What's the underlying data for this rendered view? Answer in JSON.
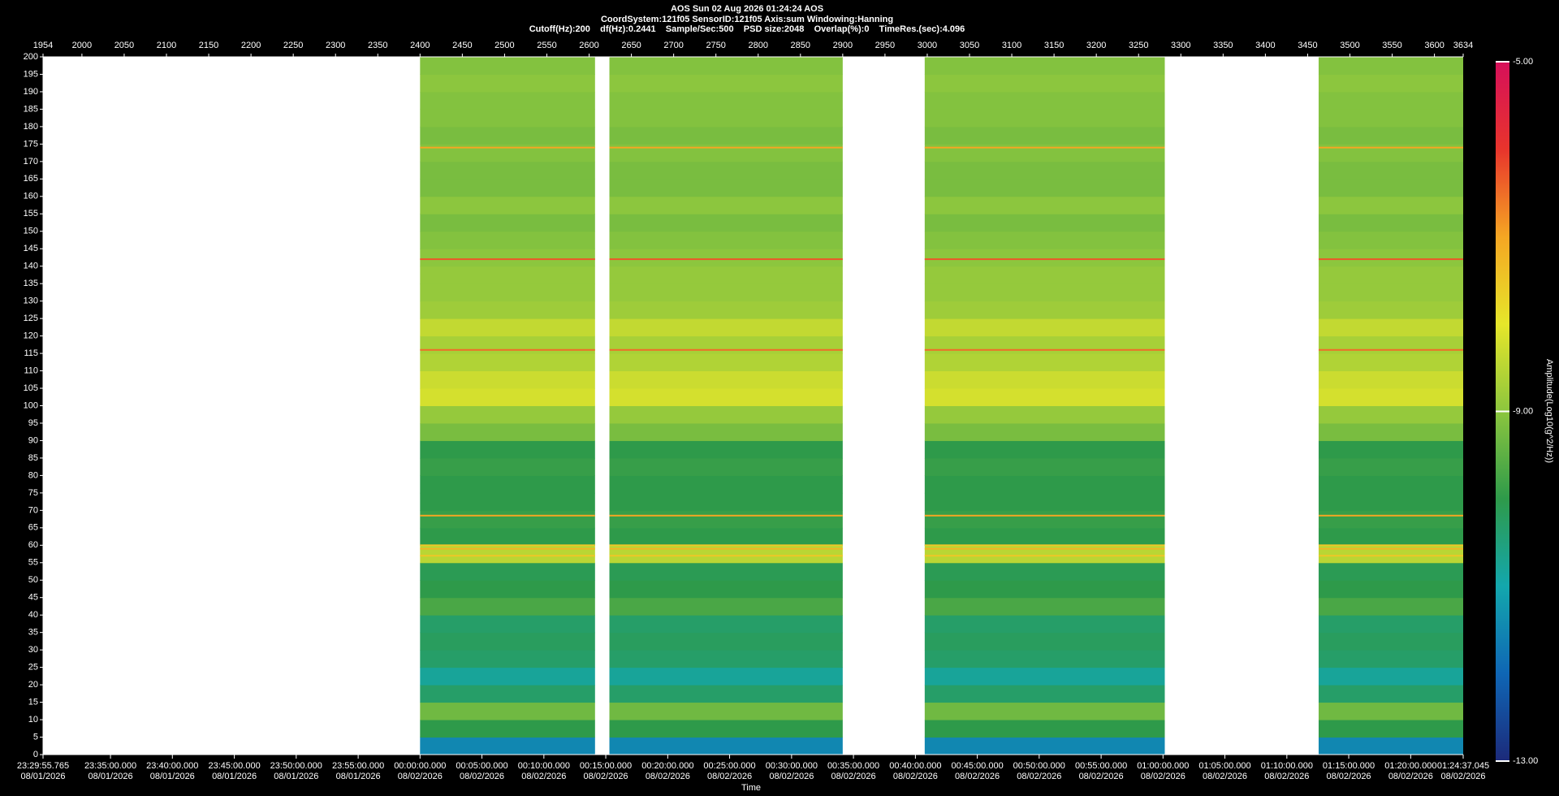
{
  "chart_data": {
    "type": "spectrogram",
    "title": "AOS  Sun 02 Aug 2026 01:24:24  AOS",
    "subtitle": "CoordSystem:121f05   SensorID:121f05   Axis:sum   Windowing:Hanning",
    "info": "Cutoff(Hz):200    df(Hz):0.2441    Sample/Sec:500    PSD size:2048    Overlap(%):0    TimeRes.(sec):4.096",
    "x2_label": "Time",
    "xlim": [
      1954,
      3634
    ],
    "xticks": [
      1954,
      2000,
      2050,
      2100,
      2150,
      2200,
      2250,
      2300,
      2350,
      2400,
      2450,
      2500,
      2550,
      2600,
      2650,
      2700,
      2750,
      2800,
      2850,
      2900,
      2950,
      3000,
      3050,
      3100,
      3150,
      3200,
      3250,
      3300,
      3350,
      3400,
      3450,
      3500,
      3550,
      3600,
      3634
    ],
    "x2ticks": [
      {
        "value": 1954,
        "label": "23:29:55.765\n08/01/2026"
      },
      {
        "value": 2033.8,
        "label": "23:35:00.000\n08/01/2026"
      },
      {
        "value": 2107.0,
        "label": "23:40:00.000\n08/01/2026"
      },
      {
        "value": 2180.3,
        "label": "23:45:00.000\n08/01/2026"
      },
      {
        "value": 2253.5,
        "label": "23:50:00.000\n08/01/2026"
      },
      {
        "value": 2326.8,
        "label": "23:55:00.000\n08/01/2026"
      },
      {
        "value": 2400,
        "label": "00:00:00.000\n08/02/2026"
      },
      {
        "value": 2473.2,
        "label": "00:05:00.000\n08/02/2026"
      },
      {
        "value": 2546.5,
        "label": "00:10:00.000\n08/02/2026"
      },
      {
        "value": 2619.7,
        "label": "00:15:00.000\n08/02/2026"
      },
      {
        "value": 2693.0,
        "label": "00:20:00.000\n08/02/2026"
      },
      {
        "value": 2766.2,
        "label": "00:25:00.000\n08/02/2026"
      },
      {
        "value": 2839.5,
        "label": "00:30:00.000\n08/02/2026"
      },
      {
        "value": 2912.7,
        "label": "00:35:00.000\n08/02/2026"
      },
      {
        "value": 2986.0,
        "label": "00:40:00.000\n08/02/2026"
      },
      {
        "value": 3059.2,
        "label": "00:45:00.000\n08/02/2026"
      },
      {
        "value": 3132.4,
        "label": "00:50:00.000\n08/02/2026"
      },
      {
        "value": 3205.7,
        "label": "00:55:00.000\n08/02/2026"
      },
      {
        "value": 3278.9,
        "label": "01:00:00.000\n08/02/2026"
      },
      {
        "value": 3352.1,
        "label": "01:05:00.000\n08/02/2026"
      },
      {
        "value": 3425.4,
        "label": "01:10:00.000\n08/02/2026"
      },
      {
        "value": 3498.6,
        "label": "01:15:00.000\n08/02/2026"
      },
      {
        "value": 3571.9,
        "label": "01:20:00.000\n08/02/2026"
      },
      {
        "value": 3634,
        "label": "01:24:37.045\n08/02/2026"
      }
    ],
    "ylim": [
      0,
      200
    ],
    "yticks": [
      0,
      5,
      10,
      15,
      20,
      25,
      30,
      35,
      40,
      45,
      50,
      55,
      60,
      65,
      70,
      75,
      80,
      85,
      90,
      95,
      100,
      105,
      110,
      115,
      120,
      125,
      130,
      135,
      140,
      145,
      150,
      155,
      160,
      165,
      170,
      175,
      180,
      185,
      190,
      195,
      200
    ],
    "segments": [
      [
        2400,
        2607
      ],
      [
        2624,
        2900
      ],
      [
        2997,
        3281
      ],
      [
        3463,
        3634
      ]
    ],
    "bands": [
      0,
      5,
      10,
      15,
      20,
      25,
      30,
      35,
      40,
      45,
      50,
      55,
      60,
      65,
      70,
      75,
      80,
      85,
      90,
      95,
      100,
      105,
      110,
      115,
      120,
      125,
      130,
      135,
      140,
      145,
      150,
      155,
      160,
      165,
      170,
      175,
      180,
      185,
      190,
      195,
      200
    ],
    "z": [
      -11.5,
      -10,
      -9.3,
      -10.3,
      -10.8,
      -10.3,
      -10.2,
      -10.3,
      -9.7,
      -10,
      -10.1,
      -8.5,
      -10,
      -9.9,
      -10,
      -10,
      -9.9,
      -10,
      -9.2,
      -8.9,
      -8.2,
      -8.3,
      -8.6,
      -8.7,
      -8.4,
      -8.8,
      -8.9,
      -8.9,
      -9.0,
      -9.1,
      -9.2,
      -9.0,
      -9.2,
      -9.2,
      -9.1,
      -9.2,
      -9.1,
      -9.1,
      -9.0,
      -9.1
    ],
    "peaks": {
      "freq": [
        57,
        59,
        60,
        68.5,
        116,
        142,
        174
      ],
      "z": [
        -7.5,
        -7.2,
        -7.5,
        -7,
        -6.5,
        -6.3,
        -7
      ]
    },
    "zlim": [
      -13,
      -5
    ],
    "colorscale": [
      "#1c2a7a",
      "#0f66b5",
      "#13a7ad",
      "#2e9a4a",
      "#8cc63e",
      "#e6e62a",
      "#f5a623",
      "#e8342c",
      "#d6105a"
    ],
    "background": "#ffffff",
    "colorbar_label": "Amplitude(Log10(g^2/Hz))",
    "colorbar_ticks": [
      {
        "value": -5,
        "label": "-5.00"
      },
      {
        "value": -9,
        "label": "-9.00"
      },
      {
        "value": -13,
        "label": "-13.00"
      }
    ]
  }
}
